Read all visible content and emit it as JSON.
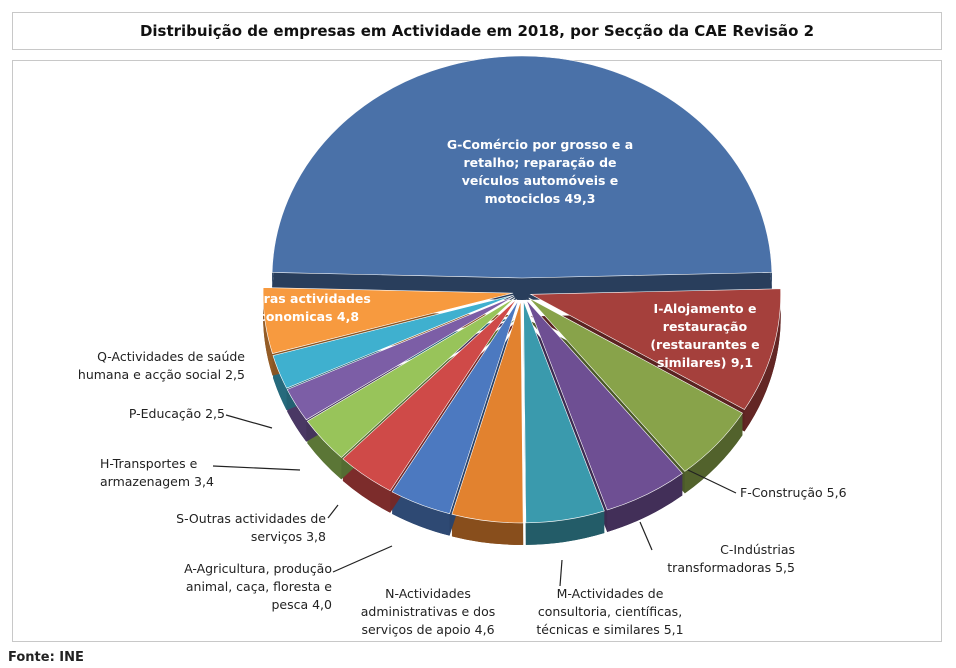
{
  "chart_data": {
    "type": "pie",
    "title": "Distribuição de empresas em Actividade em 2018, por Secção da CAE Revisão 2",
    "categories": [
      "G-Comércio por grosso e a retalho; reparação de veículos automóveis e motociclos",
      "I-Alojamento e restauração (restaurantes e similares)",
      "F-Construção",
      "C-Indústrias transformadoras",
      "M-Actividades de consultoria, científicas, técnicas e similares",
      "N-Actividades administrativas e dos serviços de apoio",
      "A-Agricultura, produção animal, caça, floresta e pesca",
      "S-Outras actividades de serviços",
      "H-Transportes e armazenagem",
      "P-Educação",
      "Q-Actividades de saúde humana e acção social",
      "Outras actividades economicas"
    ],
    "values": [
      49.3,
      9.1,
      5.6,
      5.5,
      5.1,
      4.6,
      4.0,
      3.8,
      3.4,
      2.5,
      2.5,
      4.8
    ],
    "value_labels": [
      "49,3",
      "9,1",
      "5,6",
      "5,5",
      "5,1",
      "4,6",
      "4,0",
      "3,8",
      "3,4",
      "2,5",
      "2,5",
      "4,8"
    ],
    "colors": [
      "#4a71a8",
      "#a5403c",
      "#88a34a",
      "#6e4f93",
      "#3a9aad",
      "#e2822f",
      "#4c79c0",
      "#cf4a48",
      "#98c45a",
      "#7c5ea6",
      "#3fb0cf",
      "#f79a3f"
    ],
    "source": "Fonte: INE"
  }
}
